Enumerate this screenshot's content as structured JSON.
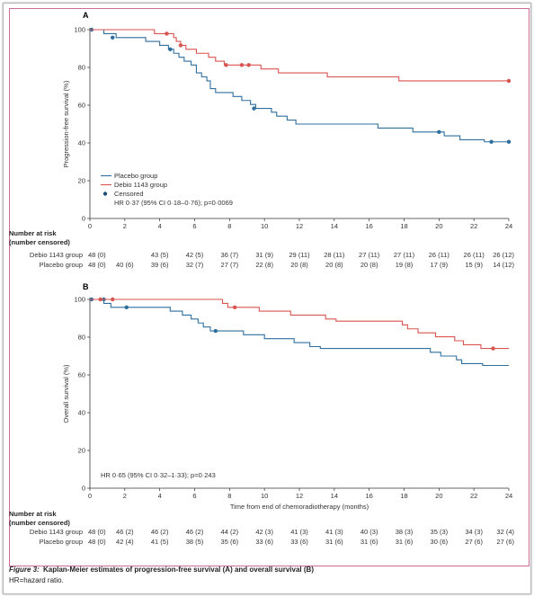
{
  "caption": {
    "figure_label": "Figure 3:",
    "figure_text": "Kaplan-Meier estimates of progression-free survival (A) and overall survival (B)",
    "footnote": "HR=hazard ratio."
  },
  "risk_table_header": [
    "Number at risk",
    "(number censored)"
  ],
  "chart_data": [
    {
      "type": "line",
      "step": true,
      "panel": "A",
      "ylabel": "Progression-free survival (%)",
      "xlabel": "",
      "xlim": [
        0,
        24
      ],
      "ylim": [
        0,
        100
      ],
      "xticks": [
        0,
        2,
        4,
        6,
        8,
        10,
        12,
        14,
        16,
        18,
        20,
        22,
        24
      ],
      "yticks": [
        0,
        20,
        40,
        60,
        80,
        100
      ],
      "legend_position": "bottom-left",
      "legend": {
        "censored_label": "Censored"
      },
      "annotation": "HR 0·37 (95% CI 0·18–0·76); p=0·0069",
      "series": [
        {
          "name": "Placebo group",
          "color": "#2e6f9e",
          "points": [
            [
              0,
              100
            ],
            [
              0.8,
              97.9
            ],
            [
              1.5,
              95.8
            ],
            [
              3.2,
              93.8
            ],
            [
              4,
              91.7
            ],
            [
              4.5,
              89.6
            ],
            [
              4.8,
              87.5
            ],
            [
              5.1,
              85.4
            ],
            [
              5.4,
              83.3
            ],
            [
              5.8,
              81.3
            ],
            [
              6.1,
              77.1
            ],
            [
              6.4,
              75
            ],
            [
              6.7,
              72.9
            ],
            [
              6.9,
              68.8
            ],
            [
              7.2,
              66.7
            ],
            [
              8.2,
              64.6
            ],
            [
              8.7,
              62.5
            ],
            [
              9.2,
              60.4
            ],
            [
              9.5,
              58.3
            ],
            [
              10.4,
              56.3
            ],
            [
              10.7,
              54.2
            ],
            [
              11.3,
              52.1
            ],
            [
              11.8,
              50
            ],
            [
              16.5,
              47.9
            ],
            [
              18.5,
              45.8
            ],
            [
              20.3,
              43.8
            ],
            [
              21.2,
              41.7
            ],
            [
              22.6,
              40.6
            ],
            [
              24,
              40.6
            ]
          ],
          "censored": [
            [
              0.1,
              100
            ],
            [
              1.3,
              95.8
            ],
            [
              4.6,
              89.6
            ],
            [
              9.4,
              58.3
            ],
            [
              20,
              45.8
            ],
            [
              23,
              40.6
            ],
            [
              24,
              40.6
            ]
          ]
        },
        {
          "name": "Debio 1143 group",
          "color": "#d9534f",
          "points": [
            [
              0,
              100
            ],
            [
              3.7,
              97.9
            ],
            [
              4.8,
              95.8
            ],
            [
              4.95,
              93.8
            ],
            [
              5.2,
              91.7
            ],
            [
              5.5,
              89.6
            ],
            [
              6.1,
              87.5
            ],
            [
              6.8,
              85.4
            ],
            [
              7.2,
              83.3
            ],
            [
              7.7,
              81.3
            ],
            [
              9.8,
              79.2
            ],
            [
              10.8,
              77.1
            ],
            [
              13.6,
              75
            ],
            [
              17.7,
              72.9
            ],
            [
              24,
              72.9
            ]
          ],
          "censored": [
            [
              4.4,
              97.9
            ],
            [
              5.2,
              91.7
            ],
            [
              7.8,
              81.3
            ],
            [
              8.7,
              81.3
            ],
            [
              9.1,
              81.3
            ],
            [
              24,
              72.9
            ]
          ]
        }
      ],
      "risk_table": {
        "rows": [
          {
            "label": "Debio 1143 group",
            "values": [
              "48 (0)",
              "43 (5)",
              "42 (5)",
              "36 (7)",
              "31 (9)",
              "29 (11)",
              "28 (11)",
              "27 (11)",
              "27 (11)",
              "26 (11)",
              "26 (11)",
              "26 (12)"
            ]
          },
          {
            "label": "Placebo group",
            "values": [
              "48 (0)",
              "40 (6)",
              "39 (6)",
              "32 (7)",
              "27 (7)",
              "22 (8)",
              "20 (8)",
              "20 (8)",
              "20 (8)",
              "19 (8)",
              "17 (9)",
              "15 (9)",
              "14 (12)"
            ]
          }
        ],
        "debio_times": [
          0,
          4,
          6,
          8,
          10,
          12,
          14,
          16,
          18,
          20,
          22,
          24
        ],
        "placebo_times": [
          0,
          2,
          4,
          6,
          8,
          10,
          12,
          14,
          16,
          18,
          20,
          22,
          24
        ]
      }
    },
    {
      "type": "line",
      "step": true,
      "panel": "B",
      "ylabel": "Overall survival (%)",
      "xlabel": "Time from end of chemoradiotherapy (months)",
      "xlim": [
        0,
        24
      ],
      "ylim": [
        0,
        100
      ],
      "xticks": [
        0,
        2,
        4,
        6,
        8,
        10,
        12,
        14,
        16,
        18,
        20,
        22,
        24
      ],
      "yticks": [
        0,
        20,
        40,
        60,
        80,
        100
      ],
      "legend_position": "top-left",
      "annotation": "HR 0·65 (95% CI 0·32–1·33); p=0·243",
      "series": [
        {
          "name": "Placebo group",
          "color": "#2e6f9e",
          "points": [
            [
              0,
              100
            ],
            [
              0.8,
              97.9
            ],
            [
              1.2,
              95.8
            ],
            [
              4.6,
              93.8
            ],
            [
              5.3,
              91.7
            ],
            [
              5.8,
              89.6
            ],
            [
              6.2,
              87.5
            ],
            [
              6.5,
              85.4
            ],
            [
              6.9,
              83.3
            ],
            [
              8.8,
              81.3
            ],
            [
              10,
              79.2
            ],
            [
              11.7,
              77.1
            ],
            [
              12.6,
              75
            ],
            [
              13.2,
              74
            ],
            [
              19.5,
              72
            ],
            [
              20.1,
              70
            ],
            [
              21,
              68
            ],
            [
              21.3,
              66
            ],
            [
              22.5,
              65
            ],
            [
              24,
              65
            ]
          ],
          "censored": [
            [
              0.1,
              100
            ],
            [
              0.8,
              100
            ],
            [
              2.1,
              95.8
            ],
            [
              7.2,
              83.3
            ]
          ]
        },
        {
          "name": "Debio 1143 group",
          "color": "#d9534f",
          "points": [
            [
              0,
              100
            ],
            [
              7.6,
              97.9
            ],
            [
              7.9,
              95.8
            ],
            [
              9.7,
              93.8
            ],
            [
              11.5,
              91.7
            ],
            [
              13.5,
              89.6
            ],
            [
              14.1,
              88.5
            ],
            [
              17.9,
              86.5
            ],
            [
              18.2,
              84.4
            ],
            [
              18.8,
              82.3
            ],
            [
              19.8,
              80.2
            ],
            [
              20.9,
              78.1
            ],
            [
              21.4,
              76
            ],
            [
              22.4,
              74
            ],
            [
              24,
              74
            ]
          ],
          "censored": [
            [
              0.6,
              100
            ],
            [
              1.3,
              100
            ],
            [
              8.3,
              95.8
            ],
            [
              23.1,
              74
            ]
          ]
        }
      ],
      "risk_table": {
        "rows": [
          {
            "label": "Debio 1143 group",
            "values": [
              "48 (0)",
              "46 (2)",
              "46 (2)",
              "46 (2)",
              "44 (2)",
              "42 (3)",
              "41 (3)",
              "41 (3)",
              "40 (3)",
              "38 (3)",
              "35 (3)",
              "34 (3)",
              "32 (4)"
            ]
          },
          {
            "label": "Placebo group",
            "values": [
              "48 (0)",
              "42 (4)",
              "41 (5)",
              "38 (5)",
              "35 (6)",
              "33 (6)",
              "33 (6)",
              "31 (6)",
              "31 (6)",
              "31 (6)",
              "30 (6)",
              "27 (6)",
              "27 (6)"
            ]
          }
        ],
        "debio_times": [
          0,
          2,
          4,
          6,
          8,
          10,
          12,
          14,
          16,
          18,
          20,
          22,
          24
        ],
        "placebo_times": [
          0,
          2,
          4,
          6,
          8,
          10,
          12,
          14,
          16,
          18,
          20,
          22,
          24
        ]
      }
    }
  ]
}
